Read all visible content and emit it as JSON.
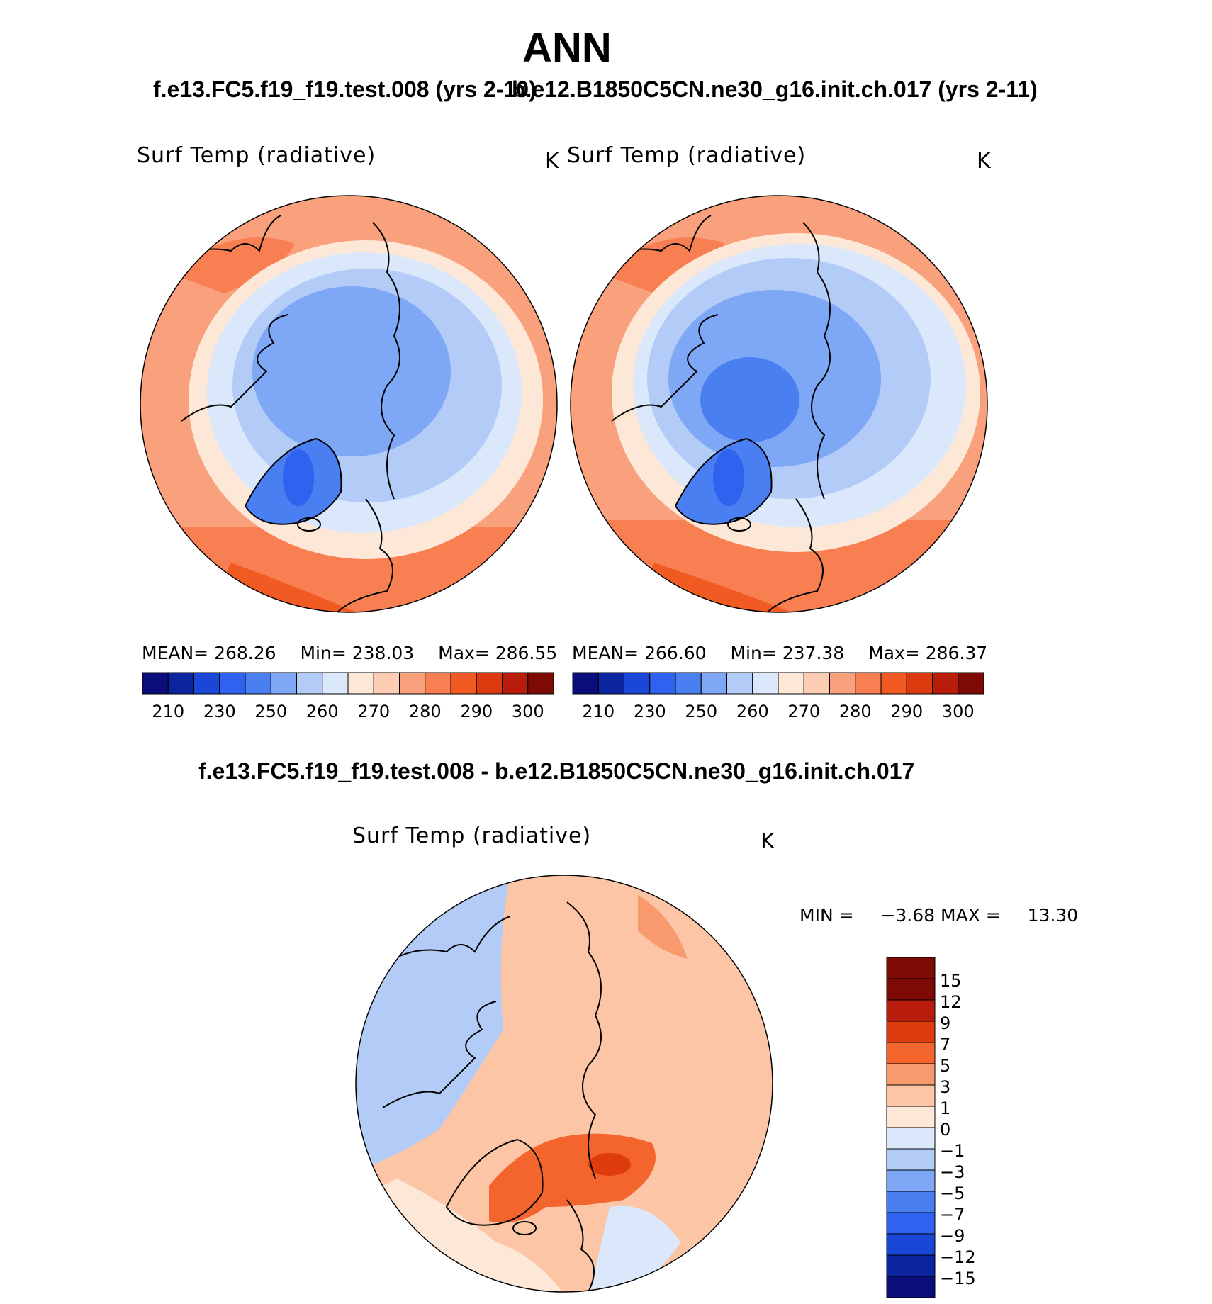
{
  "page": {
    "title": "ANN",
    "case1_header": "f.e13.FC5.f19_f19.test.008 (yrs 2-10)",
    "case2_header": "b.e12.B1850C5CN.ne30_g16.init.ch.017 (yrs 2-11)",
    "diff_header": "f.e13.FC5.f19_f19.test.008 - b.e12.B1850C5CN.ne30_g16.init.ch.017"
  },
  "colors": {
    "abs_scale": [
      "#0b0d7a",
      "#0a259e",
      "#1a47d8",
      "#2e62ef",
      "#4a7ff2",
      "#7ea7f5",
      "#b3cbf7",
      "#dbe8fb",
      "#fde8d8",
      "#fccdb3",
      "#f9a07c",
      "#f77f52",
      "#f25a24",
      "#dd3a10",
      "#b81c0a",
      "#7e0a05"
    ],
    "diff_scale": [
      "#0b0d7a",
      "#0a259e",
      "#1a47d8",
      "#2e62ef",
      "#4a7ff2",
      "#7ea7f5",
      "#b3cbf7",
      "#dbe8fb",
      "#fde8d8",
      "#fbc5a6",
      "#f99a6e",
      "#f3652c",
      "#df3c0e",
      "#b81c0a",
      "#7e0a05"
    ]
  },
  "chart_data": [
    {
      "type": "heatmap",
      "projection": "north-polar-stereographic",
      "title": "Surf Temp (radiative)",
      "units": "K",
      "stats": {
        "mean_label": "MEAN=",
        "mean": "268.26",
        "min_label": "Min=",
        "min": "238.03",
        "max_label": "Max=",
        "max": "286.55"
      },
      "colorbar_ticks": [
        "210",
        "230",
        "250",
        "260",
        "270",
        "280",
        "290",
        "300"
      ],
      "levels": [
        210,
        220,
        230,
        240,
        250,
        255,
        260,
        265,
        270,
        275,
        280,
        285,
        290,
        295,
        300
      ]
    },
    {
      "type": "heatmap",
      "projection": "north-polar-stereographic",
      "title": "Surf Temp (radiative)",
      "units": "K",
      "stats": {
        "mean_label": "MEAN=",
        "mean": "266.60",
        "min_label": "Min=",
        "min": "237.38",
        "max_label": "Max=",
        "max": "286.37"
      },
      "colorbar_ticks": [
        "210",
        "230",
        "250",
        "260",
        "270",
        "280",
        "290",
        "300"
      ],
      "levels": [
        210,
        220,
        230,
        240,
        250,
        255,
        260,
        265,
        270,
        275,
        280,
        285,
        290,
        295,
        300
      ]
    },
    {
      "type": "heatmap",
      "projection": "north-polar-stereographic",
      "title": "Surf Temp (radiative)",
      "units": "K",
      "stats": {
        "min_label": "MIN =",
        "min": "−3.68",
        "max_label": "MAX =",
        "max": "13.30"
      },
      "colorbar_ticks": [
        "15",
        "12",
        "9",
        "7",
        "5",
        "3",
        "1",
        "0",
        "−1",
        "−3",
        "−5",
        "−7",
        "−9",
        "−12",
        "−15"
      ]
    }
  ]
}
